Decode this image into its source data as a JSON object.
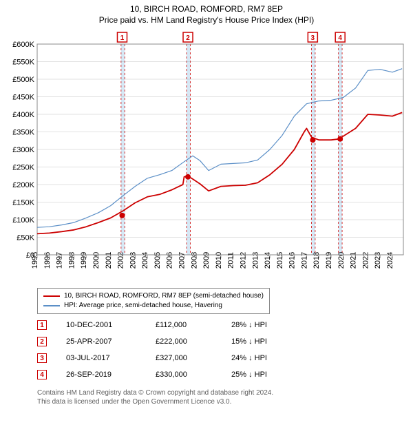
{
  "title_line1": "10, BIRCH ROAD, ROMFORD, RM7 8EP",
  "title_line2": "Price paid vs. HM Land Registry's House Price Index (HPI)",
  "chart": {
    "type": "line",
    "background_color": "#ffffff",
    "plot_border_color": "#888888",
    "gridline_color": "#888888",
    "highlight_band_color": "#d6e8f5",
    "highlight_band_dash_color": "#cc0000",
    "x_start": 1995.0,
    "x_end": 2024.9,
    "x_ticks": [
      1995,
      1996,
      1997,
      1998,
      1999,
      2000,
      2001,
      2002,
      2003,
      2004,
      2005,
      2006,
      2007,
      2008,
      2009,
      2010,
      2011,
      2012,
      2013,
      2014,
      2015,
      2016,
      2017,
      2018,
      2019,
      2020,
      2021,
      2022,
      2023,
      2024
    ],
    "y_start": 0,
    "y_end": 600000,
    "y_ticks": [
      0,
      50000,
      100000,
      150000,
      200000,
      250000,
      300000,
      350000,
      400000,
      450000,
      500000,
      550000,
      600000
    ],
    "y_tick_labels": [
      "£0",
      "£50K",
      "£100K",
      "£150K",
      "£200K",
      "£250K",
      "£300K",
      "£350K",
      "£400K",
      "£450K",
      "£500K",
      "£550K",
      "£600K"
    ],
    "y_label_fontsize": 11,
    "x_label_fontsize": 11,
    "x_label_rotation": -90,
    "highlight_bands": [
      {
        "start": 2001.85,
        "end": 2002.15
      },
      {
        "start": 2007.2,
        "end": 2007.5
      },
      {
        "start": 2017.4,
        "end": 2017.7
      },
      {
        "start": 2019.6,
        "end": 2019.9
      }
    ],
    "series": [
      {
        "name": "hpi",
        "label": "HPI: Average price, semi-detached house, Havering",
        "color": "#5b8fc7",
        "line_width": 1.2,
        "points": [
          [
            1995.0,
            78000
          ],
          [
            1996.0,
            80000
          ],
          [
            1997.0,
            85000
          ],
          [
            1998.0,
            92000
          ],
          [
            1999.0,
            105000
          ],
          [
            2000.0,
            120000
          ],
          [
            2001.0,
            140000
          ],
          [
            2002.0,
            168000
          ],
          [
            2003.0,
            195000
          ],
          [
            2004.0,
            218000
          ],
          [
            2005.0,
            228000
          ],
          [
            2006.0,
            240000
          ],
          [
            2007.0,
            265000
          ],
          [
            2007.7,
            282000
          ],
          [
            2008.3,
            268000
          ],
          [
            2009.0,
            240000
          ],
          [
            2010.0,
            258000
          ],
          [
            2011.0,
            260000
          ],
          [
            2012.0,
            262000
          ],
          [
            2013.0,
            270000
          ],
          [
            2014.0,
            300000
          ],
          [
            2015.0,
            340000
          ],
          [
            2016.0,
            395000
          ],
          [
            2017.0,
            430000
          ],
          [
            2018.0,
            438000
          ],
          [
            2019.0,
            440000
          ],
          [
            2020.0,
            448000
          ],
          [
            2021.0,
            475000
          ],
          [
            2022.0,
            525000
          ],
          [
            2023.0,
            528000
          ],
          [
            2024.0,
            520000
          ],
          [
            2024.8,
            530000
          ]
        ]
      },
      {
        "name": "price_paid",
        "label": "10, BIRCH ROAD, ROMFORD, RM7 8EP (semi-detached house)",
        "color": "#cc0000",
        "line_width": 1.8,
        "points": [
          [
            1995.0,
            60000
          ],
          [
            1996.0,
            62000
          ],
          [
            1997.0,
            66000
          ],
          [
            1998.0,
            71000
          ],
          [
            1999.0,
            80000
          ],
          [
            2000.0,
            92000
          ],
          [
            2001.0,
            105000
          ],
          [
            2002.0,
            125000
          ],
          [
            2003.0,
            148000
          ],
          [
            2004.0,
            165000
          ],
          [
            2005.0,
            172000
          ],
          [
            2006.0,
            185000
          ],
          [
            2006.9,
            200000
          ],
          [
            2007.0,
            222000
          ],
          [
            2007.3,
            224000
          ],
          [
            2007.6,
            218000
          ],
          [
            2008.3,
            202000
          ],
          [
            2009.0,
            182000
          ],
          [
            2010.0,
            195000
          ],
          [
            2011.0,
            197000
          ],
          [
            2012.0,
            198000
          ],
          [
            2013.0,
            205000
          ],
          [
            2014.0,
            228000
          ],
          [
            2015.0,
            258000
          ],
          [
            2016.0,
            300000
          ],
          [
            2016.8,
            350000
          ],
          [
            2017.0,
            360000
          ],
          [
            2017.4,
            335000
          ],
          [
            2018.0,
            327000
          ],
          [
            2019.0,
            327000
          ],
          [
            2019.7,
            330000
          ],
          [
            2020.0,
            338000
          ],
          [
            2021.0,
            360000
          ],
          [
            2022.0,
            400000
          ],
          [
            2023.0,
            398000
          ],
          [
            2024.0,
            395000
          ],
          [
            2024.8,
            405000
          ]
        ]
      }
    ],
    "sale_markers": {
      "color": "#cc0000",
      "fill": "#cc0000",
      "radius": 3.5,
      "points": [
        {
          "n": "1",
          "x": 2001.94,
          "y": 112000
        },
        {
          "n": "2",
          "x": 2007.31,
          "y": 222000
        },
        {
          "n": "3",
          "x": 2017.5,
          "y": 327000
        },
        {
          "n": "4",
          "x": 2019.74,
          "y": 330000
        }
      ]
    },
    "top_badges": [
      {
        "n": "1",
        "x": 2001.94
      },
      {
        "n": "2",
        "x": 2007.31
      },
      {
        "n": "3",
        "x": 2017.5
      },
      {
        "n": "4",
        "x": 2019.74
      }
    ]
  },
  "legend": {
    "items": [
      {
        "color": "#cc0000",
        "width": 2,
        "label": "10, BIRCH ROAD, ROMFORD, RM7 8EP (semi-detached house)"
      },
      {
        "color": "#5b8fc7",
        "width": 1.2,
        "label": "HPI: Average price, semi-detached house, Havering"
      }
    ]
  },
  "sales_table": {
    "rows": [
      {
        "n": "1",
        "date": "10-DEC-2001",
        "price": "£112,000",
        "diff": "28% ↓ HPI"
      },
      {
        "n": "2",
        "date": "25-APR-2007",
        "price": "£222,000",
        "diff": "15% ↓ HPI"
      },
      {
        "n": "3",
        "date": "03-JUL-2017",
        "price": "£327,000",
        "diff": "24% ↓ HPI"
      },
      {
        "n": "4",
        "date": "26-SEP-2019",
        "price": "£330,000",
        "diff": "25% ↓ HPI"
      }
    ]
  },
  "footer": {
    "line1": "Contains HM Land Registry data © Crown copyright and database right 2024.",
    "line2": "This data is licensed under the Open Government Licence v3.0."
  }
}
